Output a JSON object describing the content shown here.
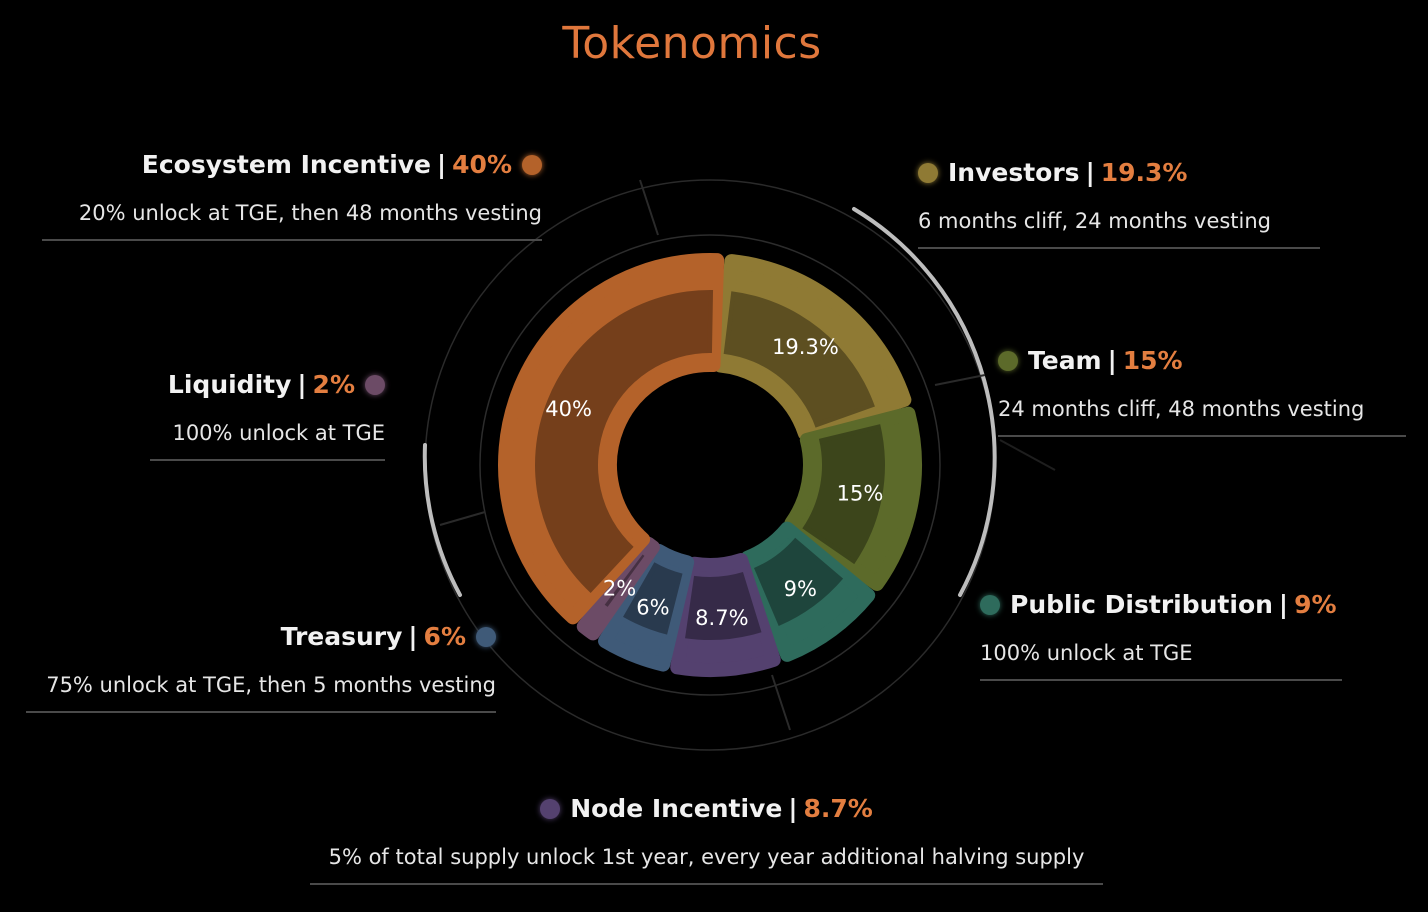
{
  "title": "Tokenomics",
  "chart_data": {
    "type": "pie",
    "title": "Tokenomics",
    "slices": [
      {
        "key": "investors",
        "name": "Investors",
        "value": 19.3,
        "slice_label": "19.3%",
        "pct_label": "19.3%",
        "desc": "6 months cliff, 24 months vesting",
        "color": "#8f7a34"
      },
      {
        "key": "team",
        "name": "Team",
        "value": 15,
        "slice_label": "15%",
        "pct_label": "15%",
        "desc": "24 months cliff, 48 months vesting",
        "color": "#5c6a2a"
      },
      {
        "key": "public",
        "name": "Public Distribution",
        "value": 9,
        "slice_label": "9%",
        "pct_label": "9%",
        "desc": "100% unlock at  TGE",
        "color": "#2e6b5c"
      },
      {
        "key": "node",
        "name": "Node Incentive",
        "value": 8.7,
        "slice_label": "8.7%",
        "pct_label": "8.7%",
        "desc": "5% of total supply unlock 1st year, every year additional halving supply",
        "color": "#54416f"
      },
      {
        "key": "treasury",
        "name": "Treasury",
        "value": 6,
        "slice_label": "6%",
        "pct_label": "6%",
        "desc": "75% unlock at TGE, then 5 months vesting",
        "color": "#3f5a78"
      },
      {
        "key": "liquidity",
        "name": "Liquidity",
        "value": 2,
        "slice_label": "2%",
        "pct_label": "2%",
        "desc": "100% unlock at TGE",
        "color": "#6c4b66"
      },
      {
        "key": "ecosystem",
        "name": "Ecosystem Incentive",
        "value": 40,
        "slice_label": "40%",
        "pct_label": "40%",
        "desc": "20% unlock at TGE, then 48 months vesting",
        "color": "#b4622a"
      }
    ]
  }
}
